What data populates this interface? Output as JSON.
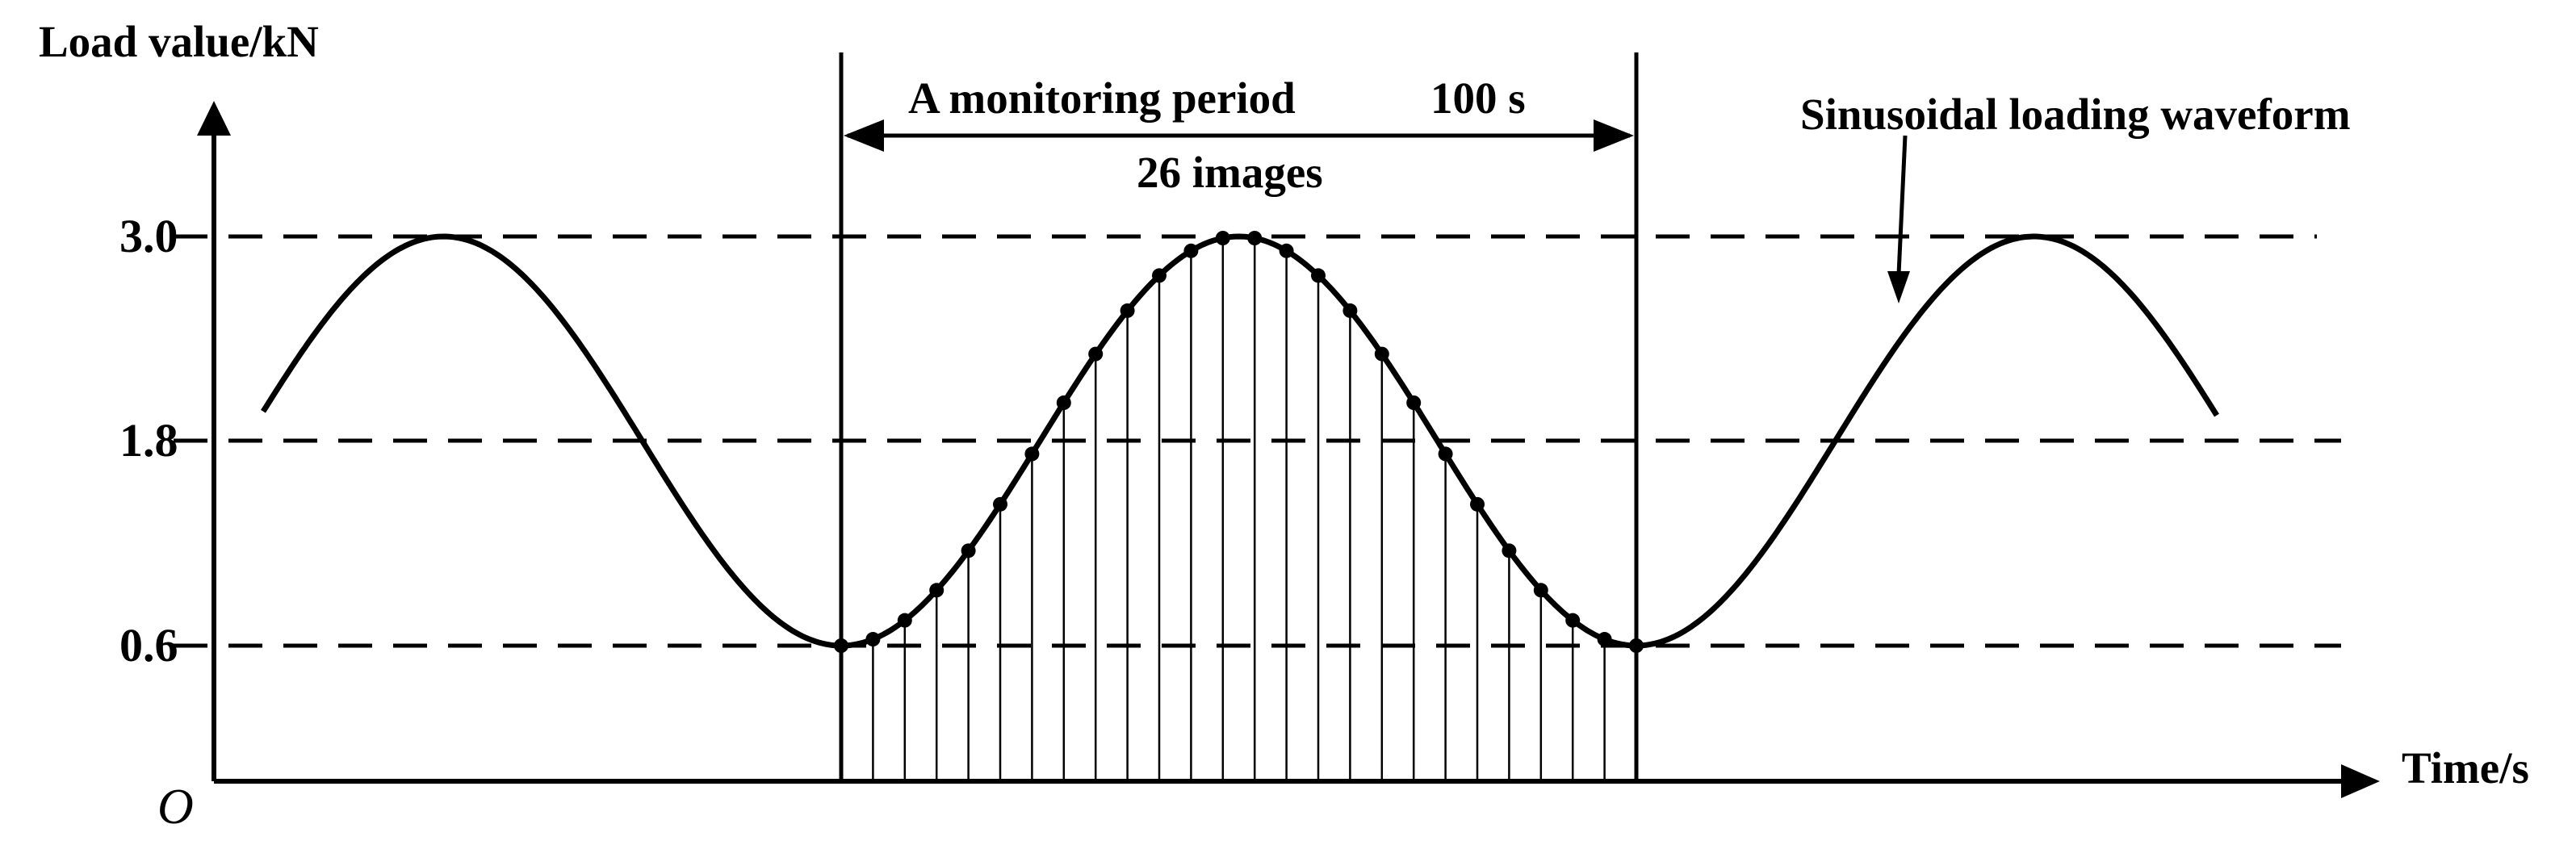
{
  "y_axis_label": "Load value/kN",
  "x_axis_label": "Time/s",
  "origin_label": "O",
  "y_ticks": [
    "3.0",
    "1.8",
    "0.6"
  ],
  "levels": {
    "max": 3.0,
    "mid": 1.8,
    "min": 0.6
  },
  "monitoring_label": "A monitoring period",
  "duration_label": "100 s",
  "images_label": "26 images",
  "waveform_label": "Sinusoidal loading waveform",
  "sample_count": 26
}
